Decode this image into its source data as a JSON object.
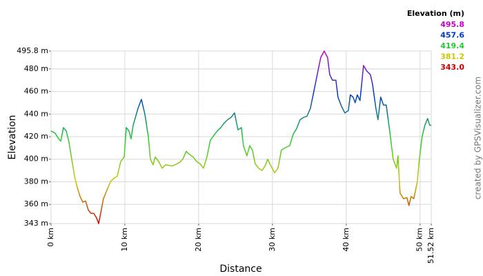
{
  "chart_data": {
    "type": "line",
    "xlabel": "Distance",
    "ylabel": "Elevation",
    "credit": "created by GPSVisualizer.com",
    "xlim": [
      0,
      51.52
    ],
    "ylim": [
      343,
      495.8
    ],
    "xticks": [
      {
        "value": 0,
        "label": "0 km"
      },
      {
        "value": 10,
        "label": "10 km"
      },
      {
        "value": 20,
        "label": "20 km"
      },
      {
        "value": 30,
        "label": "30 km"
      },
      {
        "value": 40,
        "label": "40 km"
      },
      {
        "value": 50,
        "label": "50 km"
      },
      {
        "value": 51.52,
        "label": "51.52 km"
      }
    ],
    "yticks": [
      {
        "value": 343,
        "label": "343 m"
      },
      {
        "value": 360,
        "label": "360 m"
      },
      {
        "value": 380,
        "label": "380 m"
      },
      {
        "value": 400,
        "label": "400 m"
      },
      {
        "value": 420,
        "label": "420 m"
      },
      {
        "value": 440,
        "label": "440 m"
      },
      {
        "value": 460,
        "label": "460 m"
      },
      {
        "value": 480,
        "label": "480 m"
      },
      {
        "value": 495.8,
        "label": "495.8 m"
      }
    ],
    "grid": true,
    "legend": {
      "title": "Elevation (m)",
      "values": [
        495.8,
        457.6,
        419.4,
        381.2,
        343.0
      ],
      "value_labels": [
        "495.8",
        "457.6",
        "419.4",
        "381.2",
        "343.0"
      ],
      "colors": [
        "#c800c8",
        "#0038c8",
        "#22cc33",
        "#c8c800",
        "#d00000"
      ]
    },
    "x": [
      0,
      0.56,
      0.93,
      1.31,
      1.68,
      2.06,
      2.43,
      2.8,
      3.18,
      3.55,
      3.93,
      4.3,
      4.67,
      5.05,
      5.42,
      5.79,
      6.17,
      6.45,
      7.1,
      8.04,
      8.5,
      8.97,
      9.44,
      9.91,
      10.19,
      10.56,
      10.84,
      11.12,
      11.78,
      12.24,
      12.71,
      13.18,
      13.46,
      13.83,
      14.11,
      14.58,
      15.05,
      15.51,
      16.45,
      17.38,
      17.85,
      18.32,
      18.6,
      19.25,
      19.72,
      20.19,
      20.65,
      21.12,
      21.59,
      22.06,
      22.52,
      22.99,
      23.46,
      23.93,
      24.39,
      24.86,
      25.33,
      25.79,
      26.07,
      26.54,
      26.92,
      27.29,
      27.66,
      28.13,
      28.6,
      29.07,
      29.35,
      29.72,
      30.28,
      30.75,
      31.21,
      31.68,
      32.34,
      32.8,
      33.27,
      33.74,
      34.21,
      34.67,
      35.14,
      35.61,
      36.07,
      36.54,
      37.01,
      37.48,
      37.76,
      38.13,
      38.6,
      38.88,
      39.35,
      39.81,
      40.28,
      40.56,
      40.93,
      41.21,
      41.5,
      41.87,
      42.34,
      42.8,
      43.27,
      43.55,
      44.02,
      44.3,
      44.67,
      45.05,
      45.42,
      45.89,
      46.36,
      46.82,
      47.01,
      47.29,
      47.76,
      48.22,
      48.5,
      48.79,
      49.16,
      49.63,
      49.91,
      50.28,
      50.65,
      51.03,
      51.31,
      51.52
    ],
    "values": [
      425,
      423,
      419,
      416,
      428,
      425,
      415,
      400,
      385,
      375,
      367,
      362,
      363,
      355,
      352,
      352,
      348,
      343,
      365,
      380,
      383,
      385,
      398,
      402,
      428,
      425,
      418,
      430,
      445,
      453,
      440,
      420,
      400,
      395,
      402,
      398,
      392,
      395,
      394,
      397,
      400,
      407,
      405,
      402,
      398,
      396,
      392,
      402,
      417,
      421,
      425,
      428,
      432,
      435,
      437,
      441,
      426,
      428,
      412,
      403,
      412,
      408,
      396,
      392,
      390,
      395,
      400,
      395,
      388,
      392,
      408,
      410,
      412,
      422,
      427,
      435,
      437,
      438,
      445,
      460,
      475,
      490,
      495.8,
      490,
      475,
      470,
      470,
      455,
      447,
      441,
      443,
      457,
      455,
      450,
      457,
      452,
      483,
      478,
      475,
      467,
      445,
      435,
      455,
      448,
      448,
      425,
      400,
      392,
      403,
      370,
      365,
      366,
      359,
      367,
      365,
      380,
      400,
      420,
      430,
      436,
      430,
      430
    ]
  }
}
